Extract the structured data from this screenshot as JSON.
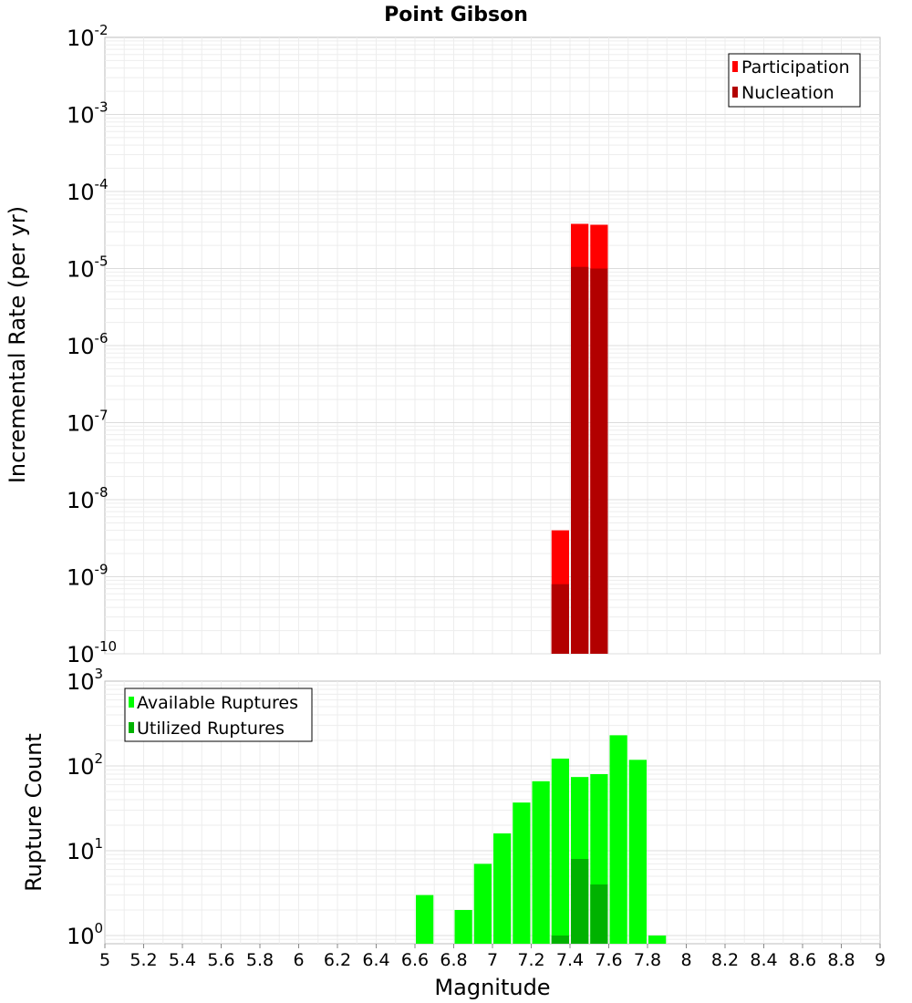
{
  "chart_data": [
    {
      "type": "bar",
      "title": "Point Gibson",
      "ylabel": "Incremental Rate (per yr)",
      "y_scale": "log",
      "ylim": [
        1e-10,
        0.01
      ],
      "xlim": [
        5,
        9
      ],
      "grid": true,
      "legend_position": "top-right",
      "series": [
        {
          "name": "Participation",
          "color": "#ff0000",
          "x": [
            7.35,
            7.45,
            7.55
          ],
          "values": [
            4e-09,
            3.8e-05,
            3.7e-05
          ]
        },
        {
          "name": "Nucleation",
          "color": "#b20000",
          "x": [
            7.35,
            7.45,
            7.55
          ],
          "values": [
            8e-10,
            1.05e-05,
            1e-05
          ]
        }
      ]
    },
    {
      "type": "bar",
      "ylabel": "Rupture Count",
      "xlabel": "Magnitude",
      "y_scale": "log",
      "ylim": [
        0.8,
        1000
      ],
      "xlim": [
        5,
        9
      ],
      "grid": true,
      "legend_position": "top-left",
      "x_ticks": [
        "5",
        "5.2",
        "5.4",
        "5.6",
        "5.8",
        "6",
        "6.2",
        "6.4",
        "6.6",
        "6.8",
        "7",
        "7.2",
        "7.4",
        "7.6",
        "7.8",
        "8",
        "8.2",
        "8.4",
        "8.6",
        "8.8",
        "9"
      ],
      "series": [
        {
          "name": "Available Ruptures",
          "color": "#00ff00",
          "x": [
            6.65,
            6.85,
            6.95,
            7.05,
            7.15,
            7.25,
            7.35,
            7.45,
            7.55,
            7.65,
            7.75,
            7.85
          ],
          "values": [
            3,
            2,
            7,
            16,
            37,
            66,
            122,
            74,
            80,
            230,
            118,
            1
          ]
        },
        {
          "name": "Utilized Ruptures",
          "color": "#00b200",
          "x": [
            7.35,
            7.45,
            7.55
          ],
          "values": [
            1,
            8,
            4
          ]
        }
      ]
    }
  ]
}
